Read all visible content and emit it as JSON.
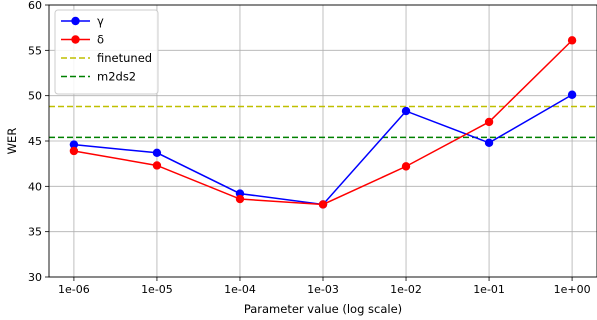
{
  "chart_data": {
    "type": "line",
    "title": "",
    "xlabel": "Parameter value (log scale)",
    "ylabel": "WER",
    "x_scale": "log",
    "x": [
      1e-06,
      1e-05,
      0.0001,
      0.001,
      0.01,
      0.1,
      1.0
    ],
    "xtick_labels": [
      "1e-06",
      "1e-05",
      "1e-04",
      "1e-03",
      "1e-02",
      "1e-01",
      "1e+00"
    ],
    "ylim": [
      30,
      60
    ],
    "yticks": [
      30,
      35,
      40,
      45,
      50,
      55,
      60
    ],
    "grid": true,
    "legend_position": "top-left",
    "series": [
      {
        "name": "γ",
        "color": "#0000ff",
        "marker": "circle",
        "linestyle": "solid",
        "values": [
          44.6,
          43.7,
          39.2,
          38.0,
          48.3,
          44.8,
          50.1
        ]
      },
      {
        "name": "δ",
        "color": "#ff0000",
        "marker": "circle",
        "linestyle": "solid",
        "values": [
          43.9,
          42.3,
          38.6,
          38.0,
          42.2,
          47.1,
          56.1
        ]
      }
    ],
    "reference_lines": [
      {
        "name": "finetuned",
        "color": "#bfbf00",
        "linestyle": "dashed",
        "value": 48.8
      },
      {
        "name": "m2ds2",
        "color": "#008000",
        "linestyle": "dashed",
        "value": 45.4
      }
    ]
  }
}
